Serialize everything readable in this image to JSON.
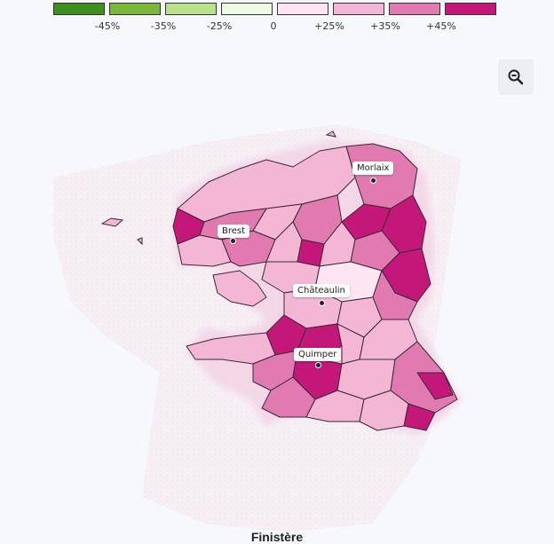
{
  "legend": {
    "items": [
      {
        "label": "",
        "color": "#3f8f1f"
      },
      {
        "label": "-45%",
        "color": "#79b83a"
      },
      {
        "label": "-35%",
        "color": "#b9e08b"
      },
      {
        "label": "-25%",
        "color": "#effae3"
      },
      {
        "label": "0",
        "color": "#fde6f1"
      },
      {
        "label": "+25%",
        "color": "#f3b6d5"
      },
      {
        "label": "+35%",
        "color": "#e07ab0"
      },
      {
        "label": "+45%",
        "color": "#c4177a"
      }
    ]
  },
  "zoom": {
    "icon": "zoom-out-icon"
  },
  "cities": [
    {
      "name": "Morlaix"
    },
    {
      "name": "Brest"
    },
    {
      "name": "Châteaulin"
    },
    {
      "name": "Quimper"
    }
  ],
  "map": {
    "title": "Finistère",
    "shown_level_colors": [
      "#fde6f1",
      "#f3b6d5",
      "#e07ab0",
      "#c4177a"
    ]
  }
}
